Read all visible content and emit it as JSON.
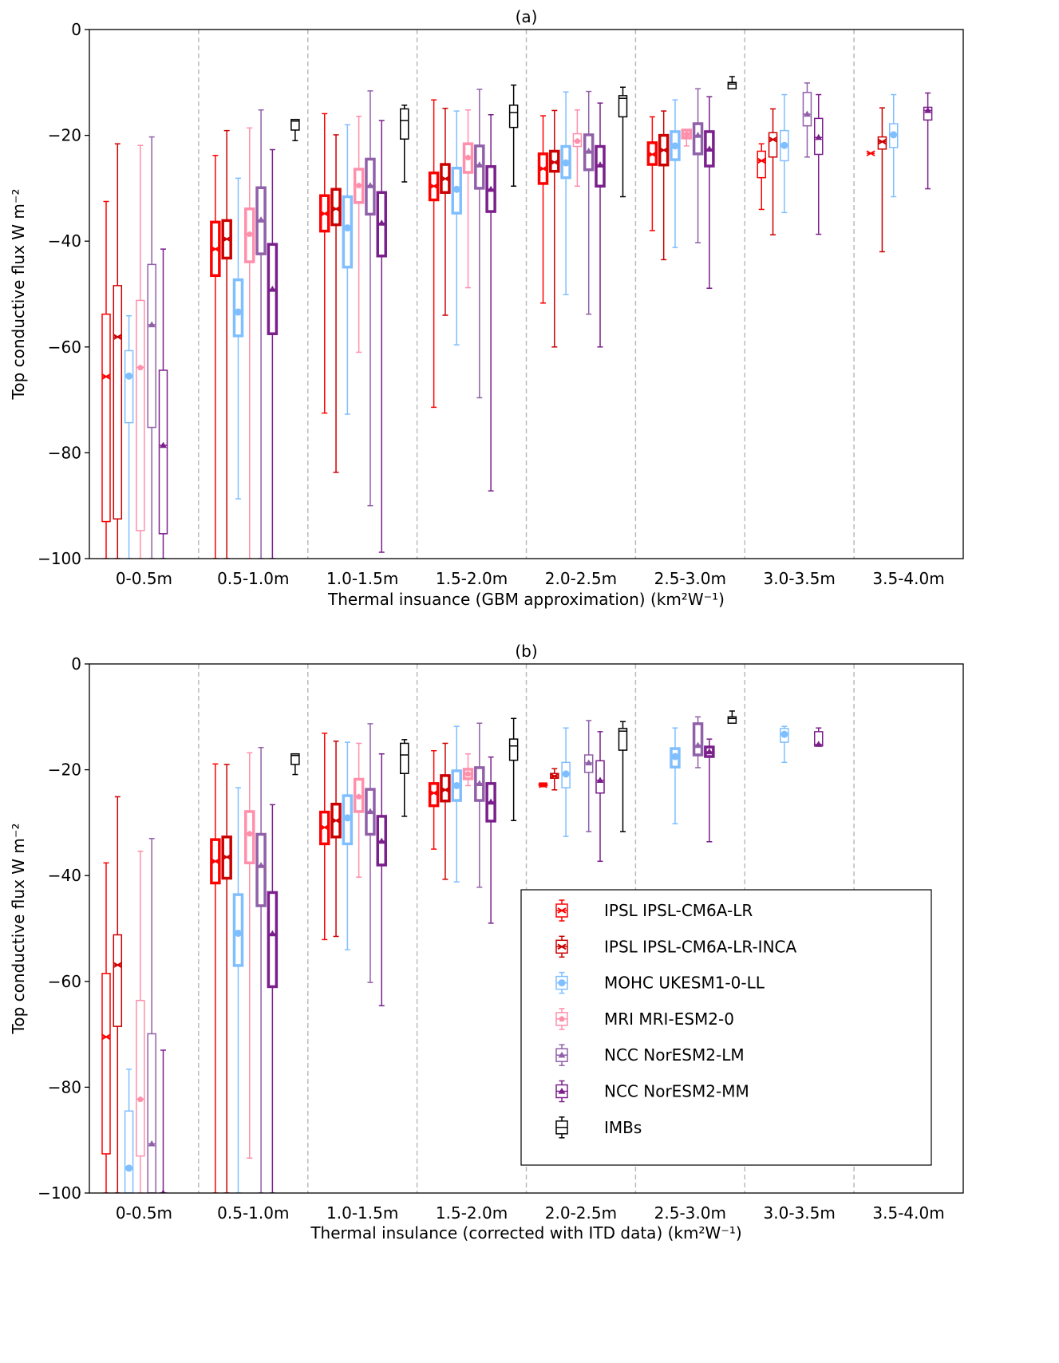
{
  "chart_data": [
    {
      "type": "box",
      "title": "(a)",
      "xlabel": "Thermal insuance (GBM approximation) (km²W⁻¹)",
      "ylabel": "Top conductive flux W m⁻²",
      "ylim": [
        -100,
        0
      ],
      "yticks": [
        0,
        -20,
        -40,
        -60,
        -80,
        -100
      ],
      "ytick_labels": [
        "0",
        "−20",
        "−40",
        "−60",
        "−80",
        "−100"
      ],
      "categories": [
        "0-0.5m",
        "0.5-1.0m",
        "1.0-1.5m",
        "1.5-2.0m",
        "2.0-2.5m",
        "2.5-3.0m",
        "3.0-3.5m",
        "3.5-4.0m"
      ],
      "box_format": [
        "whisker_low",
        "q1",
        "median",
        "q3",
        "whisker_high",
        "bold"
      ],
      "series": [
        {
          "name": "IPSL IPSL-CM6A-LR",
          "color": "#ff0000",
          "marker": "x",
          "boxes": [
            [
              -100,
              -93,
              -65.6,
              -53.8,
              -32.5,
              false
            ],
            [
              -100,
              -46.5,
              -41.5,
              -36.4,
              -23.8,
              true
            ],
            [
              -72.5,
              -38.1,
              -34.8,
              -31.4,
              -15.9,
              true
            ],
            [
              -71.4,
              -32.2,
              -29.6,
              -27.1,
              -13.3,
              true
            ],
            [
              -51.7,
              -29.1,
              -26.3,
              -23.5,
              -16.3,
              true
            ],
            [
              -38,
              -25.5,
              -23.6,
              -21.4,
              -16.5,
              true
            ],
            [
              -34,
              -28,
              -24.8,
              -23,
              -21.6,
              false
            ],
            [
              -23.4,
              -23.4,
              -23.4,
              -23.4,
              -23.4,
              false
            ]
          ]
        },
        {
          "name": "IPSL IPSL-CM6A-LR-INCA",
          "color": "#cc0000",
          "marker": "x",
          "boxes": [
            [
              -100,
              -92.5,
              -58.1,
              -48.4,
              -21.6,
              false
            ],
            [
              -100,
              -43.2,
              -39.6,
              -36.1,
              -19.1,
              true
            ],
            [
              -83.7,
              -36.9,
              -33.9,
              -30.2,
              -19.9,
              true
            ],
            [
              -54,
              -30.8,
              -28.2,
              -25.5,
              -14.9,
              true
            ],
            [
              -60,
              -26.8,
              -25.1,
              -23,
              -15.3,
              true
            ],
            [
              -43.5,
              -25.6,
              -22.8,
              -20,
              -15.4,
              true
            ],
            [
              -38.8,
              -24.1,
              -20.8,
              -19.5,
              -15,
              false
            ],
            [
              -42,
              -22.6,
              -21.2,
              -20.3,
              -14.8,
              false
            ]
          ]
        },
        {
          "name": "MOHC UKESM1-0-LL",
          "color": "#80bfff",
          "marker": "circle",
          "boxes": [
            [
              -100,
              -74.3,
              -65.5,
              -60.7,
              -54.1,
              false
            ],
            [
              -88.7,
              -57.9,
              -53.4,
              -47.3,
              -28.1,
              true
            ],
            [
              -72.7,
              -44.9,
              -37.5,
              -31.6,
              -18,
              true
            ],
            [
              -59.6,
              -34.7,
              -30.2,
              -26.2,
              -15.4,
              true
            ],
            [
              -50.1,
              -28,
              -25.2,
              -22.1,
              -11.8,
              true
            ],
            [
              -41.2,
              -24.6,
              -22,
              -19.3,
              -13.3,
              true
            ],
            [
              -34.6,
              -24.8,
              -21.9,
              -19.1,
              -12.3,
              false
            ],
            [
              -31.6,
              -22.3,
              -19.9,
              -17.8,
              -12.3,
              false
            ]
          ]
        },
        {
          "name": "MRI MRI-ESM2-0",
          "color": "#ff8fab",
          "marker": "pentagon",
          "boxes": [
            [
              -100,
              -94.7,
              -63.9,
              -51.2,
              -21.9,
              false
            ],
            [
              -100,
              -43.9,
              -38.7,
              -33.9,
              -18.6,
              true
            ],
            [
              -61,
              -32.7,
              -29.5,
              -26.4,
              -16.4,
              true
            ],
            [
              -48.8,
              -27,
              -24.2,
              -21.6,
              -15.2,
              true
            ],
            [
              -29.6,
              -22.1,
              -21.1,
              -19.7,
              -15.2,
              false
            ],
            [
              -22,
              -20.5,
              -19.8,
              -19,
              -19,
              true
            ],
            null,
            null
          ]
        },
        {
          "name": "NCC NorESM2-LM",
          "color": "#9060a8",
          "marker": "triangle",
          "boxes": [
            [
              -100,
              -75.2,
              -55.8,
              -44.4,
              -20.3,
              false
            ],
            [
              -100,
              -42.4,
              -36,
              -29.9,
              -15.2,
              true
            ],
            [
              -90,
              -34.9,
              -29.5,
              -24.5,
              -11.6,
              true
            ],
            [
              -69.6,
              -30,
              -25.6,
              -22,
              -11.3,
              true
            ],
            [
              -53.8,
              -26.5,
              -23,
              -19.9,
              -11.7,
              true
            ],
            [
              -40.3,
              -23.5,
              -20,
              -17.8,
              -11.2,
              true
            ],
            [
              -24.1,
              -18.2,
              -16,
              -11.9,
              -10.1,
              false
            ],
            null
          ]
        },
        {
          "name": "NCC NorESM2-MM",
          "color": "#7b1f8c",
          "marker": "triangle",
          "boxes": [
            [
              -100,
              -95.3,
              -78.6,
              -64.4,
              -41.5,
              false
            ],
            [
              -100,
              -57.5,
              -49.1,
              -40.6,
              -22.7,
              true
            ],
            [
              -98.8,
              -42.8,
              -36.6,
              -30.8,
              -17.2,
              true
            ],
            [
              -87.2,
              -34.4,
              -30.2,
              -25.9,
              -16.1,
              true
            ],
            [
              -60,
              -29.6,
              -25.6,
              -22.1,
              -13.9,
              true
            ],
            [
              -48.9,
              -25.8,
              -22.6,
              -19.3,
              -12.7,
              true
            ],
            [
              -38.7,
              -23.6,
              -20.4,
              -16.8,
              -12.3,
              false
            ],
            [
              -30.1,
              -17.1,
              -15.3,
              -14.7,
              -12,
              false
            ]
          ]
        },
        {
          "name": "IMBs",
          "color": "#000000",
          "marker": "none",
          "boxes": [
            null,
            [
              -21,
              -19,
              -17.3,
              -17,
              -17,
              false
            ],
            [
              -28.8,
              -20.7,
              -17.2,
              -15,
              -14.3,
              false
            ],
            [
              -29.6,
              -18.5,
              -15.7,
              -14.3,
              -10.5,
              false
            ],
            [
              -31.6,
              -16.5,
              -13,
              -12.5,
              -10.9,
              false
            ],
            [
              -11.2,
              -11.2,
              -10.3,
              -10,
              -8.9,
              false
            ],
            null,
            null
          ]
        }
      ]
    },
    {
      "type": "box",
      "title": "(b)",
      "xlabel": "Thermal insulance (corrected with ITD data) (km²W⁻¹)",
      "ylabel": "Top conductive flux W m⁻²",
      "ylim": [
        -100,
        0
      ],
      "yticks": [
        0,
        -20,
        -40,
        -60,
        -80,
        -100
      ],
      "ytick_labels": [
        "0",
        "−20",
        "−40",
        "−60",
        "−80",
        "−100"
      ],
      "categories": [
        "0-0.5m",
        "0.5-1.0m",
        "1.0-1.5m",
        "1.5-2.0m",
        "2.0-2.5m",
        "2.5-3.0m",
        "3.0-3.5m",
        "3.5-4.0m"
      ],
      "box_format": [
        "whisker_low",
        "q1",
        "median",
        "q3",
        "whisker_high",
        "bold"
      ],
      "legend_position": "lower-right",
      "series": [
        {
          "name": "IPSL IPSL-CM6A-LR",
          "color": "#ff0000",
          "marker": "x",
          "boxes": [
            [
              -100,
              -92.6,
              -70.5,
              -58.5,
              -37.6,
              false
            ],
            [
              -100,
              -41.4,
              -37.3,
              -33.2,
              -18.9,
              true
            ],
            [
              -52.1,
              -34,
              -30.9,
              -28,
              -13.1,
              true
            ],
            [
              -35,
              -26.8,
              -24.4,
              -22.6,
              -16.4,
              true
            ],
            [
              -23.2,
              -23,
              -22.9,
              -22.7,
              -22.5,
              false
            ],
            null,
            null,
            null
          ]
        },
        {
          "name": "IPSL IPSL-CM6A-LR-INCA",
          "color": "#cc0000",
          "marker": "x",
          "boxes": [
            [
              -100,
              -68.5,
              -56.9,
              -51.2,
              -25.1,
              false
            ],
            [
              -100,
              -40.5,
              -36.5,
              -32.7,
              -19,
              true
            ],
            [
              -51.5,
              -32.7,
              -29.6,
              -26.5,
              -14.6,
              true
            ],
            [
              -40.7,
              -25.9,
              -23.8,
              -21.1,
              -15,
              true
            ],
            [
              -23.8,
              -21.6,
              -21.2,
              -20.7,
              -19.8,
              false
            ],
            null,
            null,
            null
          ]
        },
        {
          "name": "MOHC UKESM1-0-LL",
          "color": "#80bfff",
          "marker": "circle",
          "boxes": [
            [
              -100,
              -100,
              -95.3,
              -84.5,
              -76.6,
              false
            ],
            [
              -100,
              -57,
              -50.9,
              -43.6,
              -23.4,
              true
            ],
            [
              -54,
              -34,
              -29.1,
              -24.9,
              -14.8,
              true
            ],
            [
              -41.2,
              -25.8,
              -23,
              -20.2,
              -11.8,
              true
            ],
            [
              -32.6,
              -23.4,
              -20.8,
              -18.6,
              -12.1,
              false
            ],
            [
              -30.2,
              -19.5,
              -17.5,
              -16,
              -12.1,
              true
            ],
            [
              -18.6,
              -14.8,
              -13.3,
              -12.2,
              -11.8,
              false
            ],
            null
          ]
        },
        {
          "name": "MRI MRI-ESM2-0",
          "color": "#ff8fab",
          "marker": "pentagon",
          "boxes": [
            [
              -100,
              -93,
              -82.3,
              -63.6,
              -35.4,
              false
            ],
            [
              -93.4,
              -37.6,
              -32.1,
              -27.9,
              -16.8,
              true
            ],
            [
              -40.3,
              -27.9,
              -25.1,
              -21.8,
              -15,
              true
            ],
            [
              -23,
              -21.7,
              -20.8,
              -19.9,
              -17,
              true
            ],
            null,
            null,
            null,
            null
          ]
        },
        {
          "name": "NCC NorESM2-LM",
          "color": "#9060a8",
          "marker": "triangle",
          "boxes": [
            [
              -100,
              -100,
              -90.7,
              -69.9,
              -33,
              false
            ],
            [
              -100,
              -45.7,
              -38.1,
              -32.2,
              -15.8,
              true
            ],
            [
              -60.2,
              -32.2,
              -27.9,
              -23.7,
              -11.3,
              true
            ],
            [
              -42.2,
              -25.8,
              -22.6,
              -19.6,
              -11.2,
              true
            ],
            [
              -31.7,
              -20.5,
              -18.7,
              -17.2,
              -10.7,
              false
            ],
            [
              -19.6,
              -17.2,
              -15.4,
              -11.3,
              -10,
              true
            ],
            null,
            null
          ]
        },
        {
          "name": "NCC NorESM2-MM",
          "color": "#7b1f8c",
          "marker": "triangle",
          "boxes": [
            [
              -100,
              -100,
              -100,
              -100,
              -73,
              false
            ],
            [
              -100,
              -61,
              -51,
              -43.2,
              -26.6,
              true
            ],
            [
              -64.6,
              -38,
              -33.5,
              -28.8,
              -17,
              true
            ],
            [
              -49,
              -29.7,
              -26.1,
              -22.6,
              -17.6,
              true
            ],
            [
              -37.3,
              -24.4,
              -22,
              -18.3,
              -12.8,
              false
            ],
            [
              -33.6,
              -17.5,
              -16.6,
              -15.7,
              -14.2,
              true
            ],
            [
              -15.5,
              -15.5,
              -15.2,
              -12.8,
              -12.1,
              false
            ],
            null
          ]
        },
        {
          "name": "IMBs",
          "color": "#000000",
          "marker": "none",
          "boxes": [
            null,
            [
              -20.9,
              -19,
              -17.3,
              -17,
              -17,
              false
            ],
            [
              -28.8,
              -20.7,
              -17.2,
              -15,
              -14.3,
              false
            ],
            [
              -29.6,
              -18.2,
              -15.5,
              -14.2,
              -10.3,
              false
            ],
            [
              -31.7,
              -16.3,
              -12.7,
              -12.2,
              -10.9,
              false
            ],
            [
              -11.2,
              -11.2,
              -10.3,
              -10,
              -8.9,
              false
            ],
            null,
            null
          ]
        }
      ]
    }
  ]
}
